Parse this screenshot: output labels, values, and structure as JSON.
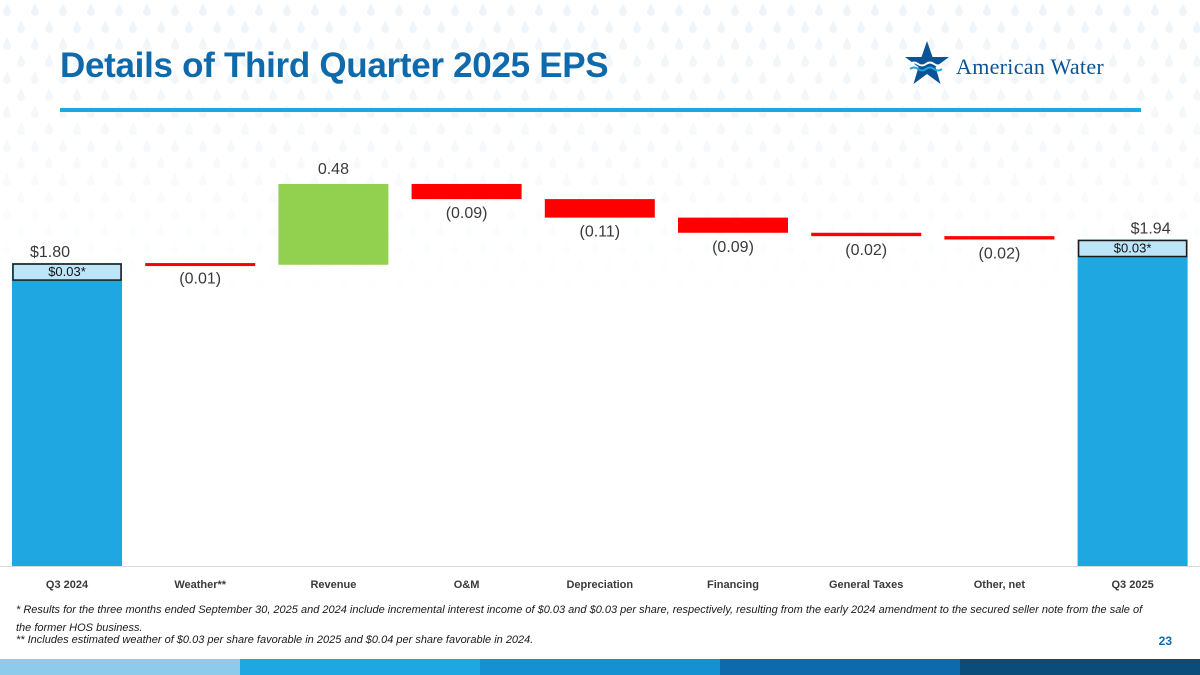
{
  "header": {
    "title": "Details of Third Quarter 2025 EPS",
    "logo_text": "American Water",
    "title_color": "#0f6aab",
    "rule_color": "#1ea7e1"
  },
  "chart_data": {
    "type": "waterfall",
    "title": "Details of Third Quarter 2025 EPS",
    "categories": [
      "Q3 2024",
      "Weather**",
      "Revenue",
      "O&M",
      "Depreciation",
      "Financing",
      "General Taxes",
      "Other, net",
      "Q3 2025"
    ],
    "values": [
      1.8,
      -0.01,
      0.48,
      -0.09,
      -0.11,
      -0.09,
      -0.02,
      -0.02,
      1.94
    ],
    "kinds": [
      "total",
      "delta",
      "delta",
      "delta",
      "delta",
      "delta",
      "delta",
      "delta",
      "total"
    ],
    "data_labels": [
      "$1.80",
      "(0.01)",
      "0.48",
      "(0.09)",
      "(0.11)",
      "(0.09)",
      "(0.02)",
      "(0.02)",
      "$1.94"
    ],
    "interest_income_labels": [
      "$0.03*",
      "",
      "",
      "",
      "",
      "",
      "",
      "",
      "$0.03*"
    ],
    "colors": {
      "total": "#1ea7e1",
      "increase": "#92d050",
      "decrease": "#ff0000",
      "callout_fill": "#bde5f8",
      "callout_border": "#1a1a1a"
    },
    "ylim": [
      0,
      2.5
    ],
    "grid": false,
    "legend": "none"
  },
  "footnotes": {
    "note1": "* Results for the three months ended September 30, 2025 and 2024 include incremental interest income of $0.03 and $0.03 per share, respectively, resulting from the early 2024 amendment to the secured seller note from the sale of the former HOS business.",
    "note2": "** Includes estimated weather of $0.03 per share favorable in 2025 and $0.04 per share favorable in 2024.",
    "page_number": "23"
  },
  "bottom_bar_colors": [
    "#8ecbeb",
    "#1ea7e1",
    "#1590d0",
    "#0f6aab",
    "#0b4d7a"
  ]
}
